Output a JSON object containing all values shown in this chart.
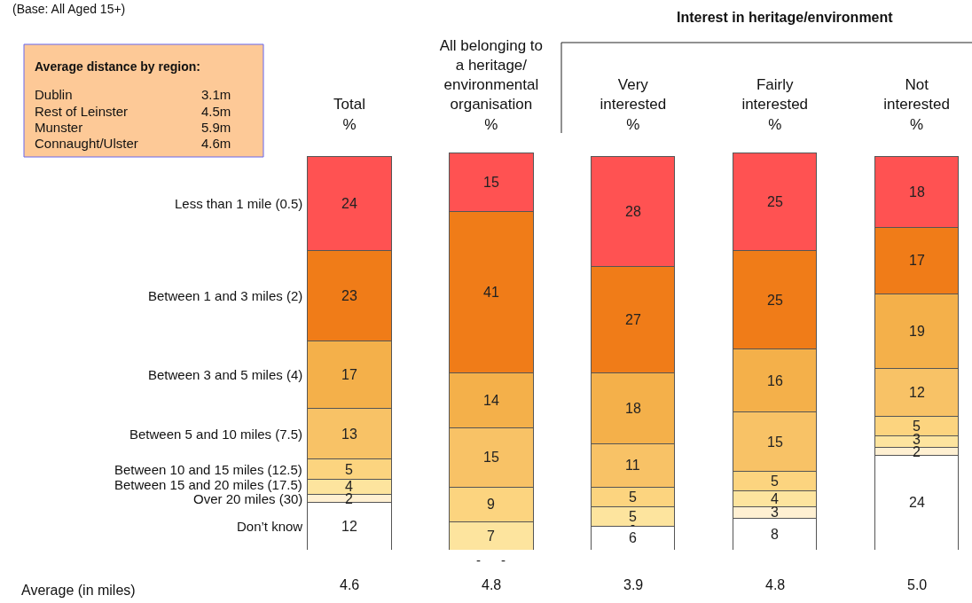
{
  "chart_data": {
    "type": "bar",
    "stacked": true,
    "legend": false,
    "tick_labels": "x",
    "categories": [
      "Total\n%",
      "All belonging to\na heritage/\nenvironmental\norganisation\n%",
      "Very\ninterested\n%",
      "Fairly\ninterested\n%",
      "Not\ninterested\n%"
    ],
    "series": [
      {
        "name": "Don’t know",
        "color": "#ffffff",
        "values": [
          12,
          null,
          6,
          8,
          24
        ],
        "value_labels": [
          "12",
          "-",
          "6",
          "8",
          "24"
        ]
      },
      {
        "name": "Over 20 miles (30)",
        "color": "#fff0d2",
        "values": [
          2,
          null,
          null,
          3,
          2
        ],
        "value_labels": [
          "2",
          "-",
          "-",
          "3",
          "2"
        ]
      },
      {
        "name": "Between 15 and 20 miles (17.5)",
        "color": "#fde49e",
        "values": [
          4,
          7,
          5,
          4,
          3
        ],
        "value_labels": [
          "4",
          "7",
          "5",
          "4",
          "3"
        ]
      },
      {
        "name": "Between 10 and 15 miles (12.5)",
        "color": "#fcd47f",
        "values": [
          5,
          9,
          5,
          5,
          5
        ],
        "value_labels": [
          "5",
          "9",
          "5",
          "5",
          "5"
        ]
      },
      {
        "name": "Between 5 and 10 miles (7.5)",
        "color": "#f8c266",
        "values": [
          13,
          15,
          11,
          15,
          12
        ],
        "value_labels": [
          "13",
          "15",
          "11",
          "15",
          "12"
        ]
      },
      {
        "name": "Between 3 and 5 miles (4)",
        "color": "#f4b04a",
        "values": [
          17,
          14,
          18,
          16,
          19
        ],
        "value_labels": [
          "17",
          "14",
          "18",
          "16",
          "19"
        ]
      },
      {
        "name": "Between 1 and 3 miles (2)",
        "color": "#f07c18",
        "values": [
          23,
          41,
          27,
          25,
          17
        ],
        "value_labels": [
          "23",
          "41",
          "27",
          "25",
          "17"
        ]
      },
      {
        "name": "Less than 1 mile (0.5)",
        "color": "#ff5252",
        "values": [
          24,
          15,
          28,
          25,
          18
        ],
        "value_labels": [
          "24",
          "15",
          "28",
          "25",
          "18"
        ]
      }
    ],
    "annotations": [
      "(Base: All Aged 15+)",
      "Average distance by region:",
      "Dublin",
      "3.1m",
      "Rest of Leinster",
      "4.5m",
      "Munster",
      "5.9m",
      "Connaught/Ulster",
      "4.6m",
      "Interest in heritage/environment",
      "Average (in miles)",
      "4.6",
      "4.8",
      "3.9",
      "4.8",
      "5.0"
    ]
  }
}
